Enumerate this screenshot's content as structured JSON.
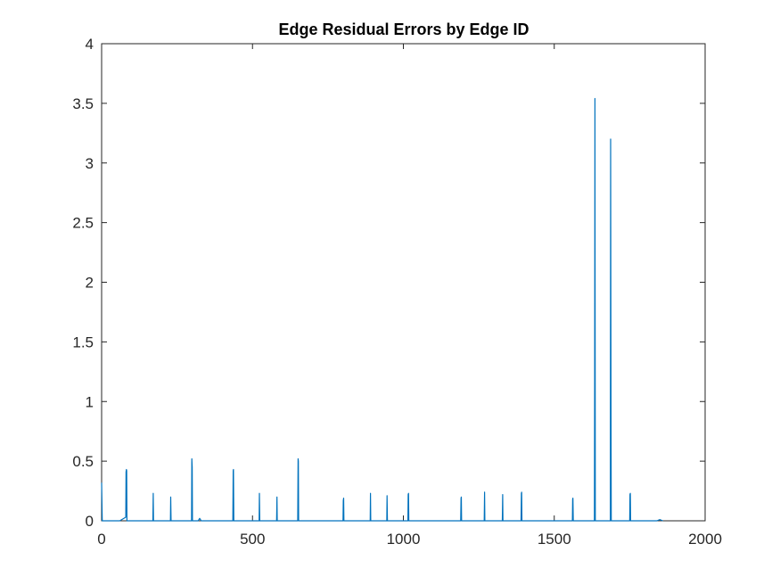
{
  "chart_data": {
    "type": "line",
    "title": "Edge Residual Errors by Edge ID",
    "xlabel": "",
    "ylabel": "",
    "xlim": [
      0,
      2000
    ],
    "ylim": [
      0,
      4
    ],
    "x_ticks": [
      0,
      500,
      1000,
      1500,
      2000
    ],
    "y_ticks": [
      0,
      0.5,
      1,
      1.5,
      2,
      2.5,
      3,
      3.5,
      4
    ],
    "x_tick_labels": [
      "0",
      "500",
      "1000",
      "1500",
      "2000"
    ],
    "y_tick_labels": [
      "0",
      "0.5",
      "1",
      "1.5",
      "2",
      "2.5",
      "3",
      "3.5",
      "4"
    ],
    "grid": false,
    "legend": "none",
    "series": [
      {
        "color": "#0072BD",
        "x": [
          0,
          2,
          5,
          60,
          80,
          81,
          82,
          83,
          84,
          170,
          171,
          172,
          228,
          229,
          230,
          298,
          299,
          300,
          301,
          320,
          325,
          330,
          435,
          436,
          437,
          438,
          522,
          523,
          524,
          580,
          581,
          582,
          650,
          651,
          652,
          653,
          800,
          801,
          802,
          803,
          890,
          891,
          892,
          945,
          946,
          947,
          1015,
          1016,
          1017,
          1018,
          1190,
          1191,
          1192,
          1193,
          1268,
          1269,
          1270,
          1328,
          1329,
          1330,
          1390,
          1391,
          1392,
          1393,
          1560,
          1561,
          1562,
          1563,
          1633,
          1634,
          1635,
          1636,
          1686,
          1687,
          1688,
          1689,
          1750,
          1751,
          1752,
          1753,
          1800,
          1840,
          1850,
          1860
        ],
        "y": [
          0.32,
          0.0,
          0.0,
          0.0,
          0.03,
          0.41,
          0.43,
          0.42,
          0.0,
          0.0,
          0.23,
          0.0,
          0.0,
          0.2,
          0.0,
          0.0,
          0.52,
          0.45,
          0.0,
          0.0,
          0.02,
          0.0,
          0.0,
          0.42,
          0.43,
          0.0,
          0.0,
          0.23,
          0.0,
          0.0,
          0.2,
          0.0,
          0.0,
          0.52,
          0.5,
          0.0,
          0.0,
          0.17,
          0.19,
          0.0,
          0.0,
          0.23,
          0.0,
          0.0,
          0.21,
          0.0,
          0.0,
          0.22,
          0.23,
          0.0,
          0.0,
          0.19,
          0.2,
          0.0,
          0.0,
          0.24,
          0.0,
          0.0,
          0.22,
          0.0,
          0.0,
          0.23,
          0.24,
          0.0,
          0.0,
          0.18,
          0.19,
          0.0,
          0.0,
          1.2,
          3.54,
          0.0,
          0.0,
          3.2,
          1.0,
          0.0,
          0.0,
          0.22,
          0.23,
          0.0,
          0.0,
          0.0,
          0.01,
          0.0
        ]
      }
    ]
  }
}
